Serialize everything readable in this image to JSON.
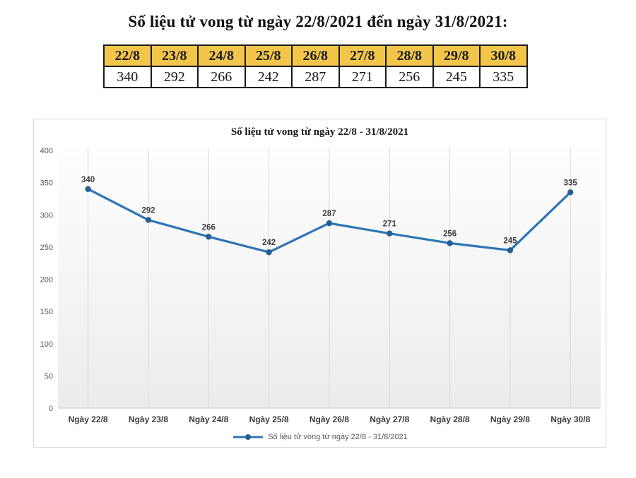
{
  "page_title": "Số liệu tử vong từ ngày 22/8/2021 đến ngày 31/8/2021:",
  "table": {
    "headers": [
      "22/8",
      "23/8",
      "24/8",
      "25/8",
      "26/8",
      "27/8",
      "28/8",
      "29/8",
      "30/8"
    ],
    "values": [
      "340",
      "292",
      "266",
      "242",
      "287",
      "271",
      "256",
      "245",
      "335"
    ]
  },
  "chart_data": {
    "type": "line",
    "title": "Số liệu tử vong từ ngày 22/8 - 31/8/2021",
    "categories": [
      "Ngày 22/8",
      "Ngày 23/8",
      "Ngày 24/8",
      "Ngày 25/8",
      "Ngày 26/8",
      "Ngày 27/8",
      "Ngày 28/8",
      "Ngày 29/8",
      "Ngày 30/8"
    ],
    "series": [
      {
        "name": "Số liệu tử vong từ ngày 22/8 - 31/8/2021",
        "values": [
          340,
          292,
          266,
          242,
          287,
          271,
          256,
          245,
          335
        ]
      }
    ],
    "xlabel": "",
    "ylabel": "",
    "ylim": [
      0,
      400
    ],
    "yticks": [
      0,
      50,
      100,
      150,
      200,
      250,
      300,
      350,
      400
    ],
    "grid": "vertical-major",
    "data_labels": true,
    "legend_position": "bottom"
  },
  "legend": {
    "label": "Số liệu tử vong từ ngày 22/8 - 31/8/2021"
  },
  "colors": {
    "table_header_bg": "#F3C64B",
    "line": "#2E75B6",
    "marker": "#255E91",
    "data_label": "#3F3F3F",
    "axis_text": "#595959",
    "x_label_text": "#3B3B3B",
    "gridline": "#D9D9D9",
    "baseline": "#C9C9C9",
    "plot_bg_top": "#FEFEFE",
    "plot_bg_bottom": "#ECECEC",
    "chart_border": "#D7D7D7"
  }
}
